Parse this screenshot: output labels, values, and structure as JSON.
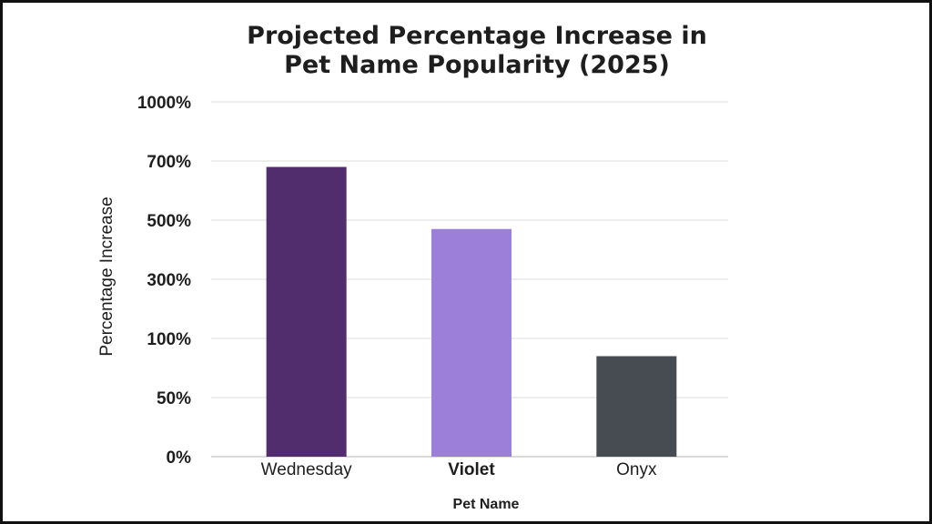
{
  "chart_data": {
    "type": "bar",
    "title_lines": [
      "Projected Percentage Increase in",
      "Pet Name Popularity (2025)"
    ],
    "xlabel": "Pet Name",
    "ylabel": "Percentage Increase",
    "categories": [
      "Wednesday",
      "Violet",
      "Onyx"
    ],
    "values": [
      680,
      470,
      85
    ],
    "y_ticks": [
      "0%",
      "50%",
      "100%",
      "300%",
      "500%",
      "700%",
      "1000%"
    ],
    "bar_colors": [
      "#512d6d",
      "#9b7fd8",
      "#474c52"
    ],
    "grid": true,
    "legend": "none"
  }
}
